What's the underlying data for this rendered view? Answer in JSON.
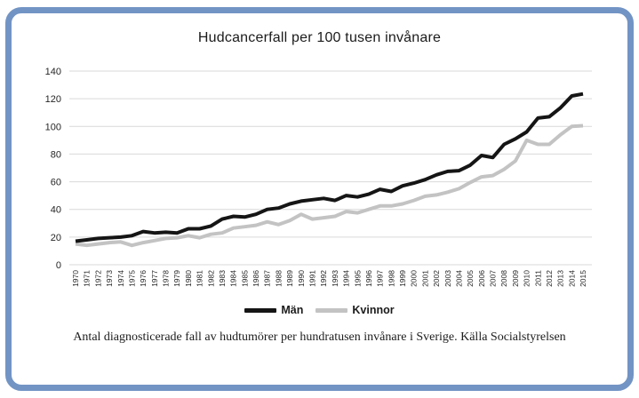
{
  "frame": {
    "border_color": "#7294c4",
    "background": "#ffffff"
  },
  "chart_data": {
    "type": "line",
    "title": "Hudcancerfall per 100 tusen invånare",
    "categories": [
      "1970",
      "1971",
      "1972",
      "1973",
      "1974",
      "1975",
      "1976",
      "1977",
      "1978",
      "1979",
      "1980",
      "1981",
      "1982",
      "1983",
      "1984",
      "1985",
      "1986",
      "1987",
      "1988",
      "1989",
      "1990",
      "1991",
      "1992",
      "1993",
      "1994",
      "1995",
      "1996",
      "1997",
      "1998",
      "1999",
      "2000",
      "2001",
      "2002",
      "2003",
      "2004",
      "2005",
      "2006",
      "2007",
      "2008",
      "2009",
      "2010",
      "2011",
      "2012",
      "2013",
      "2014",
      "2015"
    ],
    "series": [
      {
        "name": "Män",
        "color": "#151515",
        "values": [
          17,
          18,
          19,
          19.5,
          20,
          21,
          24,
          23,
          23.5,
          23,
          26,
          26,
          28,
          33,
          35,
          34.5,
          36.5,
          40,
          41,
          44,
          46,
          47,
          48,
          46.5,
          50,
          49,
          51,
          54.5,
          53,
          57,
          59,
          61.5,
          65,
          67.5,
          68,
          72,
          79,
          77.5,
          87,
          91,
          96,
          106,
          107,
          113.5,
          122,
          123.5
        ]
      },
      {
        "name": "Kvinnor",
        "color": "#c3c3c3",
        "values": [
          15,
          14,
          15,
          16,
          16.5,
          14,
          16,
          17.5,
          19,
          19.5,
          21,
          19.5,
          22,
          23,
          26.5,
          27.5,
          28.5,
          31,
          29,
          32,
          36.5,
          33,
          34,
          35,
          38.5,
          37.5,
          40,
          42.5,
          42.5,
          44,
          46.5,
          49.5,
          50.5,
          52.5,
          55,
          59.5,
          63.5,
          64.5,
          69,
          75,
          90,
          87,
          87,
          94,
          100,
          100.5
        ]
      }
    ],
    "ylim": [
      0,
      140
    ],
    "yticks": [
      "0",
      "20",
      "40",
      "60",
      "80",
      "100",
      "120",
      "140"
    ],
    "grid": true,
    "gridline_color": "#d9d9d9",
    "tick_label_color": "#262626",
    "legend_position": "bottom",
    "caption": "Antal diagnosticerade fall av hudtumörer per hundratusen invånare i Sverige. Källa Socialstyrelsen"
  }
}
